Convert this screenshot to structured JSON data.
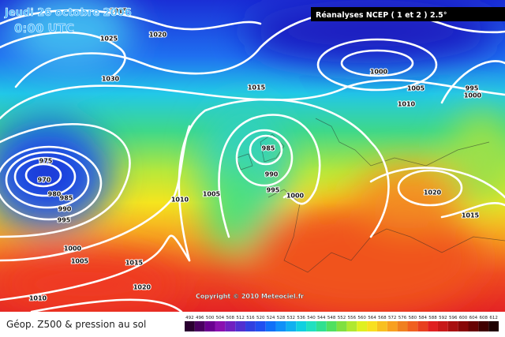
{
  "header": {
    "date": "Jeudi 26 octobre 2006",
    "time": "0:00 UTC",
    "source": "Réanalyses NCEP ( 1 et 2 ) 2.5°"
  },
  "isobar_labels": [
    "1015",
    "1020",
    "1025",
    "1030",
    "1000",
    "1005",
    "1010",
    "995",
    "1000",
    "1015",
    "985",
    "990",
    "995",
    "1000",
    "975",
    "970",
    "980",
    "985",
    "990",
    "995",
    "1005",
    "1010",
    "1000",
    "1005",
    "1015",
    "1020",
    "1010",
    "1020",
    "1015"
  ],
  "copyright": "Copyright © 2010 Meteociel.fr",
  "footer": {
    "title": "Géop. Z500 & pression au sol",
    "scale_labels": [
      492,
      496,
      500,
      504,
      508,
      512,
      516,
      520,
      524,
      528,
      532,
      536,
      540,
      544,
      548,
      552,
      556,
      560,
      564,
      568,
      572,
      576,
      580,
      584,
      588,
      592,
      596,
      600,
      604,
      608,
      612
    ]
  }
}
